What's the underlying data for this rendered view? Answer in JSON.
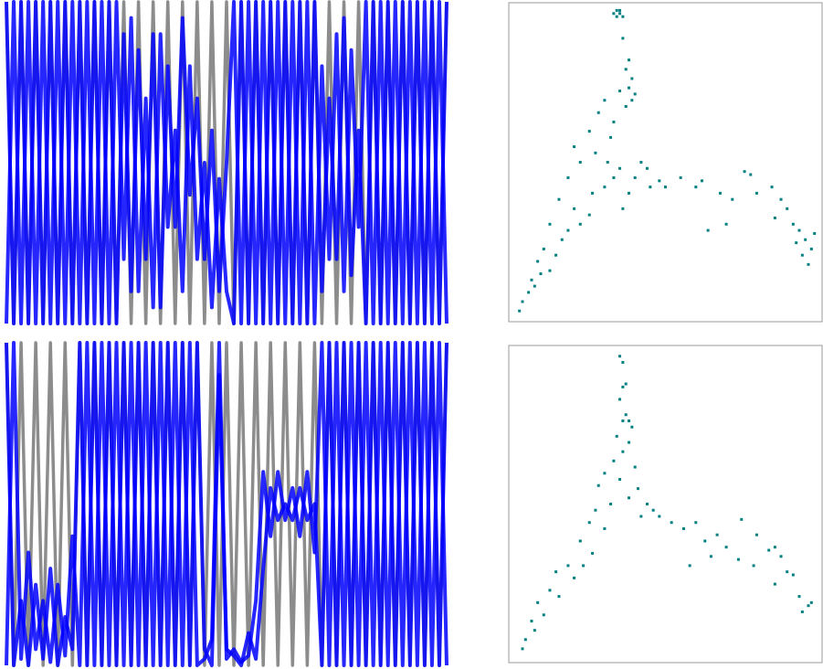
{
  "chart_data": [
    {
      "type": "line",
      "x": [
        0,
        1,
        2,
        3,
        4,
        5,
        6,
        7,
        8,
        9,
        10,
        11,
        12,
        13,
        14,
        15,
        16,
        17,
        18,
        19,
        20,
        21,
        22,
        23,
        24,
        25,
        26,
        27,
        28,
        29,
        30,
        31,
        32,
        33,
        34,
        35,
        36,
        37,
        38,
        39,
        40,
        41,
        42,
        43,
        44,
        45,
        46,
        47,
        48,
        49,
        50,
        51,
        52,
        53,
        54,
        55,
        56,
        57,
        58,
        59,
        60
      ],
      "xlim": [
        0,
        60
      ],
      "ylim": [
        0,
        1
      ],
      "series": [
        {
          "color": "#808080",
          "values": [
            1,
            0,
            1,
            0,
            1,
            0,
            1,
            0,
            1,
            0,
            1,
            0,
            1,
            0,
            1,
            0,
            1,
            0,
            1,
            0,
            1,
            0,
            1,
            0,
            1,
            0,
            1,
            0,
            1,
            0,
            1,
            0,
            1,
            0,
            1,
            0,
            1,
            0,
            1,
            0,
            1,
            0,
            1,
            0,
            1,
            0,
            1,
            0,
            1,
            0,
            1,
            0,
            1,
            0,
            1,
            0,
            1,
            0,
            1,
            0,
            1
          ]
        },
        {
          "color": "#0000ff",
          "values": [
            1,
            0,
            1,
            0,
            1,
            0,
            1,
            0,
            1,
            0,
            1,
            0,
            1,
            0,
            1,
            0,
            0.9,
            0.1,
            0.85,
            0.2,
            0.9,
            0.05,
            0.8,
            0.3,
            0.95,
            0.4,
            0.7,
            0.2,
            0.6,
            0.1,
            0.5,
            1,
            0,
            1,
            0,
            1,
            0,
            1,
            0,
            1,
            0,
            1,
            0,
            0.8,
            0.2,
            0.9,
            0.1,
            0.85,
            0.3,
            1,
            0,
            1,
            0,
            1,
            0,
            1,
            0,
            1,
            0,
            1,
            0
          ]
        },
        {
          "color": "#0000ff",
          "values": [
            0,
            1,
            0,
            1,
            0,
            1,
            0,
            1,
            0,
            1,
            0,
            1,
            0,
            1,
            0,
            1,
            0.2,
            0.95,
            0.1,
            0.7,
            0.05,
            0.9,
            0.3,
            0.6,
            0.1,
            0.8,
            0.2,
            0.5,
            0.05,
            0.45,
            0.1,
            0,
            1,
            0,
            1,
            0,
            1,
            0,
            1,
            0,
            1,
            0,
            1,
            0.1,
            0.7,
            0.2,
            0.95,
            0.15,
            0.6,
            0,
            1,
            0,
            1,
            0,
            1,
            0,
            1,
            0,
            1,
            0,
            1
          ]
        }
      ]
    },
    {
      "type": "scatter",
      "color": "#008080",
      "xlim": [
        0,
        100
      ],
      "ylim": [
        0,
        100
      ],
      "x": [
        33,
        34,
        35,
        36,
        34,
        35,
        36,
        38,
        37,
        39,
        38,
        39,
        37,
        40,
        35,
        28,
        30,
        25,
        20,
        22,
        27,
        32,
        33,
        31,
        35,
        40,
        42,
        38,
        45,
        44,
        48,
        50,
        36,
        30,
        26,
        33,
        18,
        15,
        20,
        12,
        16,
        10,
        8,
        12,
        6,
        5,
        3,
        2,
        7,
        9,
        14,
        18,
        22,
        25,
        55,
        60,
        62,
        68,
        72,
        76,
        78,
        80,
        85,
        88,
        90,
        92,
        94,
        96,
        98,
        95,
        97,
        93,
        99,
        86,
        70,
        64
      ],
      "values": [
        98,
        99,
        98,
        97,
        97,
        99,
        90,
        83,
        80,
        77,
        74,
        70,
        68,
        72,
        73,
        66,
        70,
        60,
        55,
        50,
        53,
        58,
        63,
        50,
        48,
        45,
        50,
        40,
        42,
        48,
        44,
        42,
        35,
        42,
        40,
        45,
        45,
        38,
        35,
        30,
        25,
        22,
        18,
        15,
        12,
        8,
        5,
        2,
        10,
        14,
        20,
        28,
        30,
        33,
        45,
        42,
        44,
        40,
        38,
        47,
        46,
        40,
        42,
        38,
        35,
        30,
        28,
        25,
        22,
        20,
        17,
        24,
        27,
        32,
        30,
        28
      ]
    },
    {
      "type": "line",
      "x": [
        0,
        1,
        2,
        3,
        4,
        5,
        6,
        7,
        8,
        9,
        10,
        11,
        12,
        13,
        14,
        15,
        16,
        17,
        18,
        19,
        20,
        21,
        22,
        23,
        24,
        25,
        26,
        27,
        28,
        29,
        30,
        31,
        32,
        33,
        34,
        35,
        36,
        37,
        38,
        39,
        40,
        41,
        42,
        43,
        44,
        45,
        46,
        47,
        48,
        49,
        50,
        51,
        52,
        53,
        54,
        55,
        56,
        57,
        58,
        59,
        60
      ],
      "xlim": [
        0,
        60
      ],
      "ylim": [
        0,
        1
      ],
      "series": [
        {
          "color": "#808080",
          "values": [
            1,
            0,
            1,
            0,
            1,
            0,
            1,
            0,
            1,
            0,
            1,
            0,
            1,
            0,
            1,
            0,
            1,
            0,
            1,
            0,
            1,
            0,
            1,
            0,
            1,
            0,
            1,
            0,
            1,
            0,
            1,
            0,
            1,
            0,
            1,
            0,
            1,
            0,
            1,
            0,
            1,
            0,
            1,
            0,
            1,
            0,
            1,
            0,
            1,
            0,
            1,
            0,
            1,
            0,
            1,
            0,
            1,
            0,
            1,
            0,
            1
          ]
        },
        {
          "color": "#0000ff",
          "values": [
            1,
            0,
            0.2,
            0,
            0.25,
            0.02,
            0.3,
            0,
            0.15,
            0.05,
            1,
            0,
            1,
            0,
            1,
            0,
            1,
            0,
            1,
            0,
            1,
            0,
            1,
            0,
            1,
            0,
            1,
            0.05,
            0,
            0.9,
            0.05,
            0.03,
            0,
            0.1,
            0.02,
            0.3,
            0.55,
            0.45,
            0.5,
            0.45,
            0.55,
            0.45,
            0.5,
            0,
            1,
            0,
            1,
            0,
            1,
            0,
            1,
            0,
            1,
            0,
            1,
            0,
            1,
            0,
            1,
            0,
            1
          ]
        },
        {
          "color": "#0000ff",
          "values": [
            0,
            1,
            0.02,
            0.35,
            0.05,
            0.2,
            0.01,
            0.25,
            0.03,
            0.4,
            0,
            1,
            0,
            1,
            0,
            1,
            0,
            1,
            0,
            1,
            0,
            1,
            0,
            1,
            0,
            1,
            0,
            0.02,
            0.08,
            1,
            0.02,
            0.05,
            0.01,
            0.03,
            0.2,
            0.6,
            0.4,
            0.6,
            0.45,
            0.55,
            0.4,
            0.6,
            0.35,
            1,
            0,
            1,
            0,
            1,
            0,
            1,
            0,
            1,
            0,
            1,
            0,
            1,
            0,
            1,
            0,
            1,
            0
          ]
        }
      ]
    },
    {
      "type": "scatter",
      "color": "#008080",
      "xlim": [
        0,
        100
      ],
      "ylim": [
        0,
        100
      ],
      "x": [
        35,
        36,
        37,
        36,
        35,
        38,
        36,
        37,
        39,
        34,
        38,
        36,
        40,
        33,
        30,
        28,
        35,
        41,
        38,
        44,
        42,
        46,
        32,
        27,
        25,
        30,
        22,
        26,
        18,
        20,
        14,
        12,
        8,
        10,
        6,
        4,
        3,
        7,
        15,
        23,
        48,
        52,
        56,
        60,
        63,
        67,
        70,
        74,
        75,
        80,
        84,
        86,
        88,
        90,
        92,
        94,
        97,
        95,
        98,
        86,
        79,
        65,
        58
      ],
      "values": [
        98,
        96,
        89,
        88,
        84,
        77,
        77,
        79,
        75,
        72,
        70,
        67,
        62,
        64,
        60,
        56,
        58,
        55,
        52,
        50,
        46,
        48,
        50,
        48,
        44,
        42,
        38,
        34,
        30,
        26,
        28,
        22,
        18,
        14,
        12,
        6,
        3,
        9,
        20,
        30,
        46,
        44,
        42,
        44,
        38,
        40,
        36,
        32,
        45,
        40,
        35,
        36,
        33,
        28,
        27,
        20,
        17,
        15,
        18,
        24,
        30,
        33,
        30
      ]
    }
  ]
}
